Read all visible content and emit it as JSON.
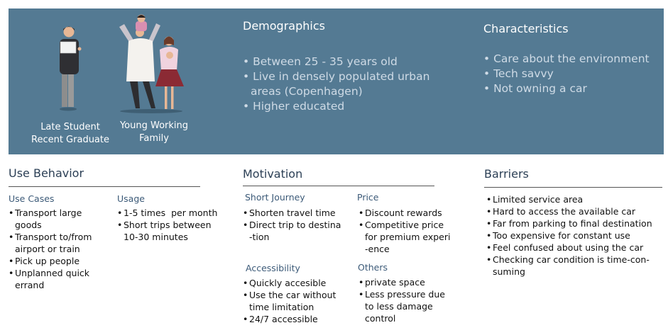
{
  "personas": {
    "student": {
      "line1": "Late Student",
      "line2": "Recent Graduate"
    },
    "family": {
      "line1": "Young Working",
      "line2": "Family"
    }
  },
  "demographics": {
    "title": "Demographics",
    "items": [
      "Between 25 - 35 years old",
      "Live in densely populated urban",
      "areas (Copenhagen)",
      "Higher educated"
    ]
  },
  "characteristics": {
    "title": "Characteristics",
    "items": [
      "Care about the environment",
      "Tech savvy",
      "Not owning a car"
    ]
  },
  "use_behavior": {
    "title": "Use Behavior",
    "use_cases": {
      "title": "Use Cases",
      "items": [
        "Transport large\ngoods",
        "Transport to/from\nairport or train",
        "Pick up people",
        "Unplanned quick\nerrand"
      ]
    },
    "usage": {
      "title": "Usage",
      "items": [
        "1-5 times  per month",
        "Short trips between\n10-30 minutes"
      ]
    }
  },
  "motivation": {
    "title": "Motivation",
    "short_journey": {
      "title": "Short Journey",
      "items": [
        "Shorten travel time",
        "Direct trip to destina\n-tion"
      ]
    },
    "price": {
      "title": "Price",
      "items": [
        "Discount rewards",
        "Competitive price\nfor premium experi\n-ence"
      ]
    },
    "accessibility": {
      "title": "Accessibility",
      "items": [
        "Quickly accesible",
        "Use the car without\ntime limitation",
        "24/7 accessible"
      ]
    },
    "others": {
      "title": "Others",
      "items": [
        "private space",
        "Less pressure due\nto less damage\ncontrol"
      ]
    }
  },
  "barriers": {
    "title": "Barriers",
    "items": [
      "Limited service area",
      "Hard to access the available car",
      "Far from parking to final destination",
      "Too expensive for constant use",
      "Feel confused about using the car",
      "Checking car condition is time-con-\nsuming"
    ]
  }
}
